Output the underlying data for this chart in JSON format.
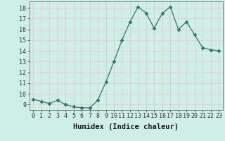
{
  "x": [
    0,
    1,
    2,
    3,
    4,
    5,
    6,
    7,
    8,
    9,
    10,
    11,
    12,
    13,
    14,
    15,
    16,
    17,
    18,
    19,
    20,
    21,
    22,
    23
  ],
  "y": [
    9.5,
    9.3,
    9.1,
    9.4,
    9.0,
    8.8,
    8.7,
    8.7,
    9.4,
    11.1,
    13.0,
    15.0,
    16.7,
    18.1,
    17.5,
    16.1,
    17.5,
    18.1,
    16.0,
    16.7,
    15.5,
    14.3,
    14.1,
    14.0
  ],
  "line_color": "#2d7a6e",
  "marker": "D",
  "marker_size": 2.5,
  "bg_color": "#ceeee8",
  "grid_color": "#e8c8c8",
  "xlabel": "Humidex (Indice chaleur)",
  "ylim": [
    8.5,
    18.6
  ],
  "xlim": [
    -0.5,
    23.5
  ],
  "yticks": [
    9,
    10,
    11,
    12,
    13,
    14,
    15,
    16,
    17,
    18
  ],
  "xticks": [
    0,
    1,
    2,
    3,
    4,
    5,
    6,
    7,
    8,
    9,
    10,
    11,
    12,
    13,
    14,
    15,
    16,
    17,
    18,
    19,
    20,
    21,
    22,
    23
  ],
  "tick_fontsize": 6.0,
  "xlabel_fontsize": 7.5
}
